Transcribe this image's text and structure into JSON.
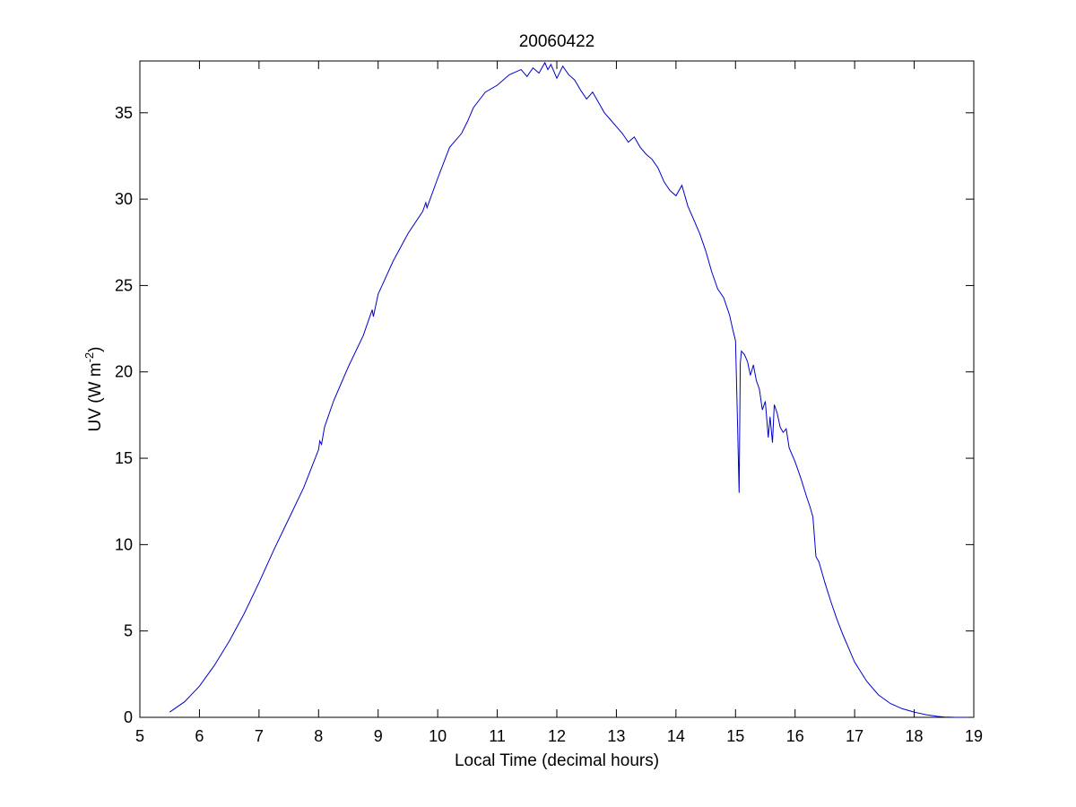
{
  "chart_data": {
    "type": "line",
    "title": "20060422",
    "xlabel": "Local Time (decimal hours)",
    "ylabel": "UV (W m",
    "ylabel_sup": "-2",
    "ylabel_close": ")",
    "xlim": [
      5,
      19
    ],
    "ylim": [
      0,
      38
    ],
    "x_ticks": [
      5,
      6,
      7,
      8,
      9,
      10,
      11,
      12,
      13,
      14,
      15,
      16,
      17,
      18,
      19
    ],
    "y_ticks": [
      0,
      5,
      10,
      15,
      20,
      25,
      30,
      35
    ],
    "grid": false,
    "line_color": "#0000cc",
    "series": [
      {
        "x": [
          5.5,
          5.75,
          6.0,
          6.25,
          6.5,
          6.75,
          7.0,
          7.25,
          7.5,
          7.75,
          8.0,
          8.02,
          8.05,
          8.1,
          8.25,
          8.5,
          8.75,
          8.9,
          8.92,
          9.0,
          9.25,
          9.5,
          9.75,
          9.8,
          9.82,
          10.0,
          10.2,
          10.4,
          10.5,
          10.6,
          10.8,
          11.0,
          11.2,
          11.4,
          11.5,
          11.6,
          11.7,
          11.8,
          11.85,
          11.9,
          12.0,
          12.1,
          12.2,
          12.3,
          12.4,
          12.5,
          12.6,
          12.7,
          12.8,
          12.9,
          13.0,
          13.1,
          13.2,
          13.3,
          13.4,
          13.5,
          13.6,
          13.7,
          13.8,
          13.9,
          14.0,
          14.1,
          14.2,
          14.3,
          14.4,
          14.5,
          14.6,
          14.7,
          14.8,
          14.9,
          14.95,
          15.0,
          15.03,
          15.06,
          15.08,
          15.1,
          15.15,
          15.2,
          15.25,
          15.3,
          15.35,
          15.4,
          15.45,
          15.5,
          15.55,
          15.58,
          15.62,
          15.65,
          15.7,
          15.75,
          15.8,
          15.85,
          15.9,
          16.0,
          16.1,
          16.2,
          16.25,
          16.3,
          16.35,
          16.4,
          16.5,
          16.6,
          16.7,
          16.8,
          16.9,
          17.0,
          17.2,
          17.4,
          17.6,
          17.8,
          18.0,
          18.2,
          18.4,
          18.5,
          18.7,
          18.9
        ],
        "y": [
          0.3,
          0.9,
          1.8,
          3.0,
          4.4,
          6.0,
          7.8,
          9.7,
          11.5,
          13.3,
          15.5,
          16.0,
          15.8,
          16.8,
          18.3,
          20.3,
          22.1,
          23.6,
          23.2,
          24.5,
          26.4,
          28.0,
          29.3,
          29.8,
          29.5,
          31.2,
          33.0,
          33.8,
          34.5,
          35.3,
          36.2,
          36.6,
          37.2,
          37.5,
          37.1,
          37.6,
          37.3,
          37.9,
          37.5,
          37.8,
          37.0,
          37.7,
          37.2,
          36.9,
          36.3,
          35.8,
          36.2,
          35.6,
          35.0,
          34.6,
          34.2,
          33.8,
          33.3,
          33.6,
          33.0,
          32.6,
          32.3,
          31.8,
          31.0,
          30.5,
          30.2,
          30.8,
          29.6,
          28.8,
          28.0,
          27.0,
          25.8,
          24.8,
          24.3,
          23.3,
          22.5,
          21.8,
          17.5,
          13.0,
          20.5,
          21.2,
          21.0,
          20.6,
          19.8,
          20.4,
          19.5,
          19.0,
          17.8,
          18.3,
          16.2,
          17.4,
          15.9,
          18.1,
          17.6,
          16.8,
          16.5,
          16.7,
          15.6,
          14.8,
          13.8,
          12.7,
          12.2,
          11.6,
          9.3,
          9.0,
          7.8,
          6.7,
          5.7,
          4.8,
          4.0,
          3.2,
          2.1,
          1.3,
          0.8,
          0.5,
          0.3,
          0.15,
          0.05,
          0.02,
          0.0,
          0.0
        ]
      }
    ]
  }
}
